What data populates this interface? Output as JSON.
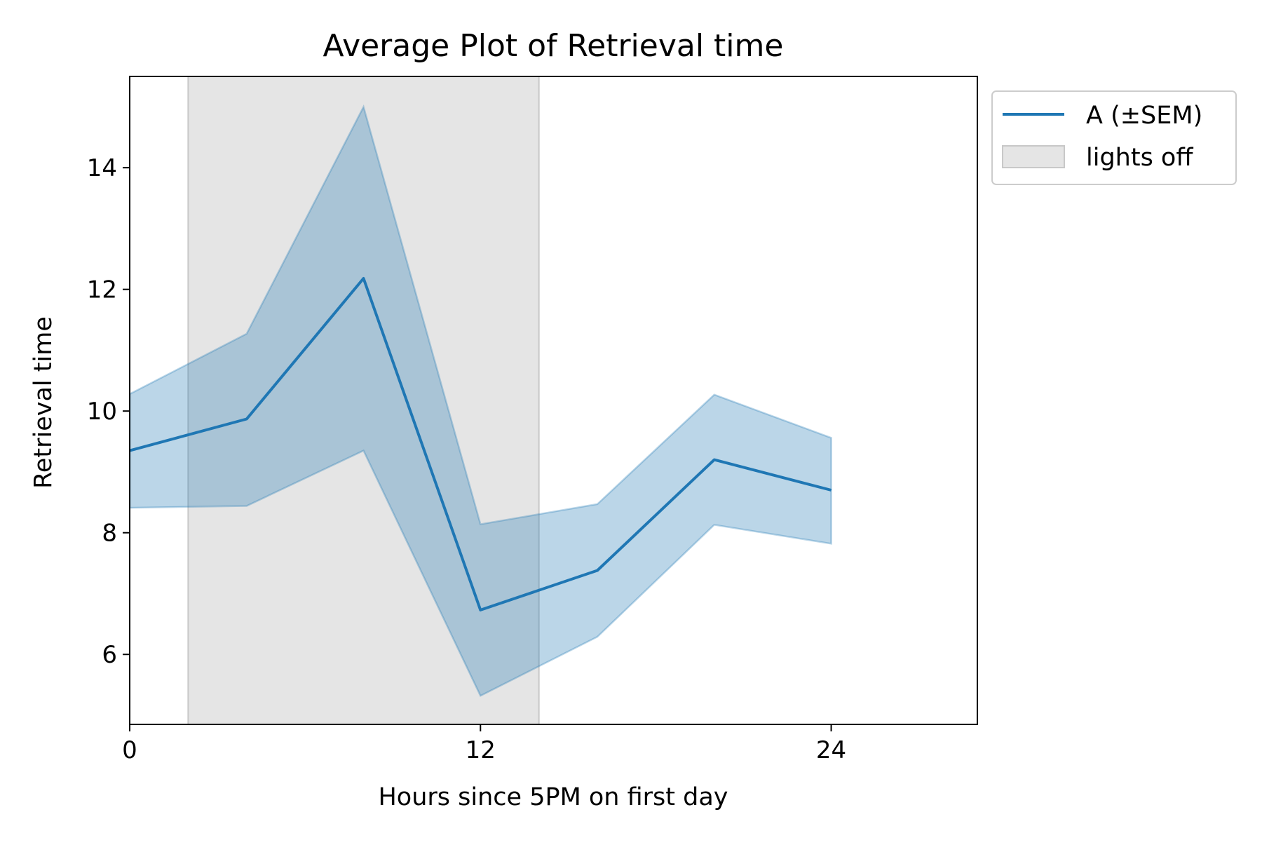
{
  "chart_data": {
    "type": "line",
    "title": "Average Plot of Retrieval time",
    "xlabel": "Hours since 5PM on first day",
    "ylabel": "Retrieval time",
    "xlim": [
      0,
      29
    ],
    "ylim": [
      4.85,
      15.5
    ],
    "xticks": [
      0,
      12,
      24
    ],
    "yticks": [
      6,
      8,
      10,
      12,
      14
    ],
    "grid": false,
    "legend_position": "outside top-right",
    "shaded_region": {
      "x_start": 2,
      "x_end": 14,
      "label": "lights off",
      "color": "#e5e5e5"
    },
    "series": [
      {
        "name": "A (±SEM)",
        "color": "#1f77b4",
        "band_color": "#bad3e7",
        "x": [
          0,
          4,
          8,
          12,
          16,
          20,
          24
        ],
        "y": [
          9.35,
          9.87,
          12.18,
          6.73,
          7.38,
          9.2,
          8.7
        ],
        "lower": [
          8.41,
          8.44,
          9.35,
          5.32,
          6.29,
          8.13,
          7.82
        ],
        "upper": [
          10.28,
          11.27,
          15.0,
          8.14,
          8.47,
          10.27,
          9.56
        ]
      }
    ]
  }
}
